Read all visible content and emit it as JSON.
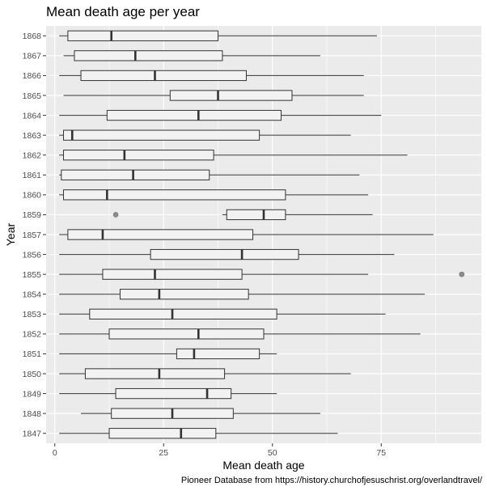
{
  "chart_data": {
    "type": "boxplot",
    "orientation": "horizontal",
    "title": "Mean death age per year",
    "xlabel": "Mean death age",
    "ylabel": "Year",
    "caption": "Pioneer Database from https://history.churchofjesuschrist.org/overlandtravel/",
    "xlim": [
      -2,
      98
    ],
    "xticks": [
      0,
      25,
      50,
      75
    ],
    "grid": true,
    "colors": {
      "panel": "#ebebeb",
      "grid": "#ffffff",
      "box_fill": "#f2f2f2",
      "box_stroke": "#333333",
      "outlier": "#8c8c8c"
    },
    "categories": [
      "1868",
      "1867",
      "1866",
      "1865",
      "1864",
      "1863",
      "1862",
      "1861",
      "1860",
      "1859",
      "1857",
      "1856",
      "1855",
      "1854",
      "1853",
      "1852",
      "1851",
      "1850",
      "1849",
      "1848",
      "1847"
    ],
    "boxes": [
      {
        "year": "1868",
        "min": 1,
        "q1": 3,
        "median": 13,
        "q3": 37.5,
        "max": 74,
        "outliers": []
      },
      {
        "year": "1867",
        "min": 2,
        "q1": 4.5,
        "median": 18.5,
        "q3": 38.5,
        "max": 61,
        "outliers": []
      },
      {
        "year": "1866",
        "min": 1,
        "q1": 6,
        "median": 23,
        "q3": 44,
        "max": 71,
        "outliers": []
      },
      {
        "year": "1865",
        "min": 2,
        "q1": 26.5,
        "median": 37.5,
        "q3": 54.5,
        "max": 71,
        "outliers": []
      },
      {
        "year": "1864",
        "min": 1,
        "q1": 12,
        "median": 33,
        "q3": 52,
        "max": 75,
        "outliers": []
      },
      {
        "year": "1863",
        "min": 1,
        "q1": 2,
        "median": 4,
        "q3": 47,
        "max": 68,
        "outliers": []
      },
      {
        "year": "1862",
        "min": 1,
        "q1": 2,
        "median": 16,
        "q3": 36.5,
        "max": 81,
        "outliers": []
      },
      {
        "year": "1861",
        "min": 1,
        "q1": 1.5,
        "median": 18,
        "q3": 35.5,
        "max": 70,
        "outliers": []
      },
      {
        "year": "1860",
        "min": 1,
        "q1": 2,
        "median": 12,
        "q3": 53,
        "max": 72,
        "outliers": []
      },
      {
        "year": "1859",
        "min": 38.5,
        "q1": 39.5,
        "median": 48,
        "q3": 53,
        "max": 73,
        "outliers": [
          14
        ]
      },
      {
        "year": "1857",
        "min": 1,
        "q1": 3,
        "median": 11,
        "q3": 45.5,
        "max": 87,
        "outliers": []
      },
      {
        "year": "1856",
        "min": 1,
        "q1": 22,
        "median": 43,
        "q3": 56,
        "max": 78,
        "outliers": []
      },
      {
        "year": "1855",
        "min": 1,
        "q1": 11,
        "median": 23,
        "q3": 43,
        "max": 72,
        "outliers": [
          93.5
        ]
      },
      {
        "year": "1854",
        "min": 1,
        "q1": 15,
        "median": 24,
        "q3": 44.5,
        "max": 85,
        "outliers": []
      },
      {
        "year": "1853",
        "min": 1,
        "q1": 8,
        "median": 27,
        "q3": 51,
        "max": 76,
        "outliers": []
      },
      {
        "year": "1852",
        "min": 1,
        "q1": 12.5,
        "median": 33,
        "q3": 48,
        "max": 84,
        "outliers": []
      },
      {
        "year": "1851",
        "min": 1,
        "q1": 28,
        "median": 32,
        "q3": 47,
        "max": 51,
        "outliers": []
      },
      {
        "year": "1850",
        "min": 1,
        "q1": 7,
        "median": 24,
        "q3": 39,
        "max": 68,
        "outliers": []
      },
      {
        "year": "1849",
        "min": 1,
        "q1": 14,
        "median": 35,
        "q3": 40.5,
        "max": 51,
        "outliers": []
      },
      {
        "year": "1848",
        "min": 6,
        "q1": 13,
        "median": 27,
        "q3": 41,
        "max": 61,
        "outliers": []
      },
      {
        "year": "1847",
        "min": 1,
        "q1": 12.5,
        "median": 29,
        "q3": 37,
        "max": 65,
        "outliers": []
      }
    ]
  }
}
